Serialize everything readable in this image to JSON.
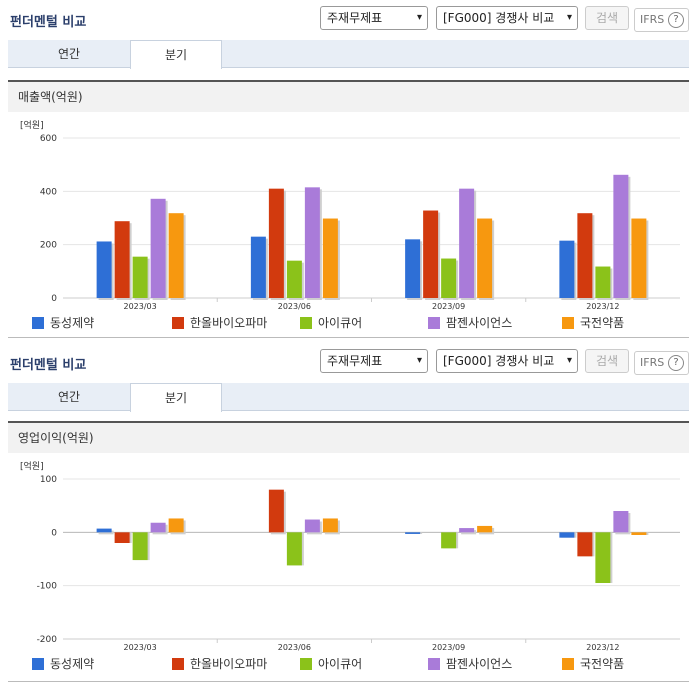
{
  "panel_title": "펀더멘털 비교",
  "select1": "주재무제표",
  "select2": "[FG000] 경쟁사 비교",
  "search_btn": "검색",
  "ifrs": "IFRS",
  "help": "?",
  "tabs": [
    "연간",
    "분기"
  ],
  "unit_label": "[억원]",
  "colors": {
    "동성제약": "#2e6fd6",
    "한올바이오파마": "#d23a0e",
    "아이큐어": "#8bc21a",
    "팜젠사이언스": "#a97bd9",
    "국전약품": "#f7980f"
  },
  "legend": [
    "동성제약",
    "한올바이오파마",
    "아이큐어",
    "팜젠사이언스",
    "국전약품"
  ],
  "chart_data": [
    {
      "type": "bar",
      "title": "매출액(억원)",
      "ylabel": "[억원]",
      "categories": [
        "2023/03",
        "2023/06",
        "2023/09",
        "2023/12"
      ],
      "ylim": [
        0,
        600
      ],
      "yticks": [
        0,
        200,
        400,
        600
      ],
      "series": [
        {
          "name": "동성제약",
          "values": [
            212,
            230,
            220,
            215
          ]
        },
        {
          "name": "한올바이오파마",
          "values": [
            288,
            410,
            328,
            318
          ]
        },
        {
          "name": "아이큐어",
          "values": [
            155,
            140,
            148,
            118
          ]
        },
        {
          "name": "팜젠사이언스",
          "values": [
            372,
            415,
            410,
            462
          ]
        },
        {
          "name": "국전약품",
          "values": [
            318,
            298,
            298,
            298
          ]
        }
      ]
    },
    {
      "type": "bar",
      "title": "영업이익(억원)",
      "ylabel": "[억원]",
      "categories": [
        "2023/03",
        "2023/06",
        "2023/09",
        "2023/12"
      ],
      "ylim": [
        -200,
        100
      ],
      "yticks": [
        -200,
        -100,
        0,
        100
      ],
      "series": [
        {
          "name": "동성제약",
          "values": [
            7,
            null,
            -3,
            -10
          ]
        },
        {
          "name": "한올바이오파마",
          "values": [
            -20,
            80,
            null,
            -45
          ]
        },
        {
          "name": "아이큐어",
          "values": [
            -52,
            -62,
            -30,
            -95
          ]
        },
        {
          "name": "팜젠사이언스",
          "values": [
            18,
            24,
            8,
            40
          ]
        },
        {
          "name": "국전약품",
          "values": [
            26,
            26,
            12,
            -5
          ]
        }
      ]
    }
  ]
}
